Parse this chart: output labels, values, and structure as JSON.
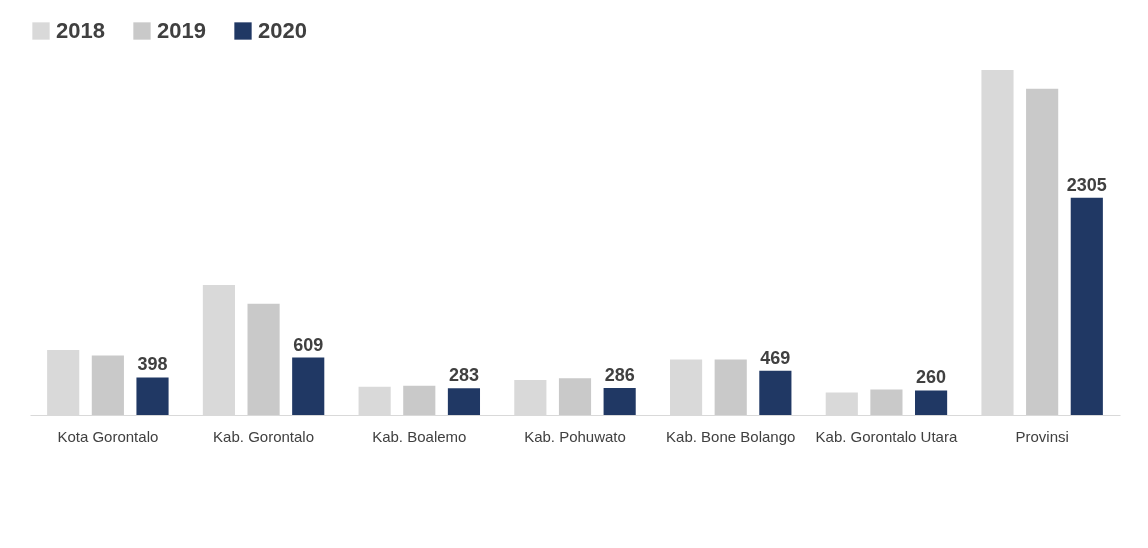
{
  "chart_data": {
    "type": "bar",
    "categories": [
      "Kota Gorontalo",
      "Kab. Gorontalo",
      "Kab. Boalemo",
      "Kab. Pohuwato",
      "Kab. Bone Bolango",
      "Kab. Gorontalo Utara",
      "Provinsi"
    ],
    "series": [
      {
        "name": "2018",
        "color": "#d9d9d9",
        "values": [
          690,
          1380,
          300,
          370,
          590,
          240,
          3660
        ]
      },
      {
        "name": "2019",
        "color": "#c9c9c9",
        "values": [
          630,
          1180,
          310,
          390,
          590,
          270,
          3460
        ]
      },
      {
        "name": "2020",
        "color": "#203864",
        "values": [
          398,
          609,
          283,
          286,
          469,
          260,
          2305
        ],
        "value_labels": [
          "398",
          "609",
          "283",
          "286",
          "469",
          "260",
          "2305"
        ]
      }
    ],
    "legend": "top",
    "tick_labels": "x",
    "grid": false
  }
}
